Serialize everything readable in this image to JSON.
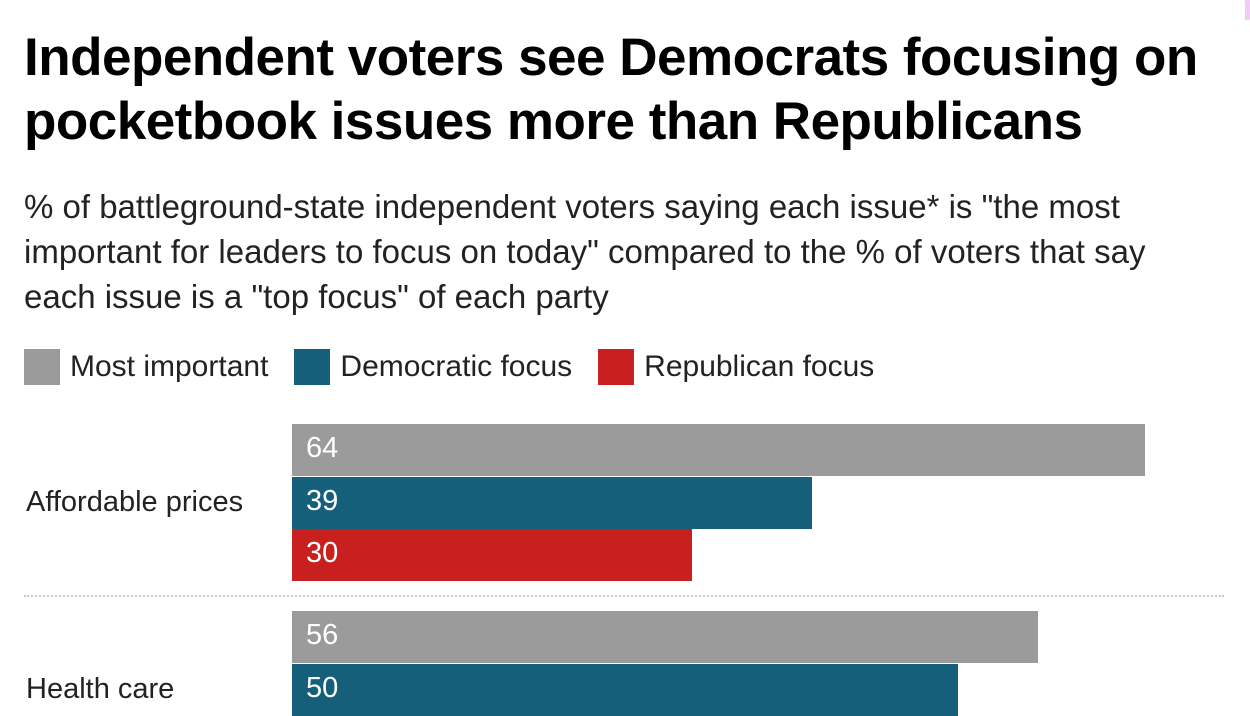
{
  "colors": {
    "most_important": "#9b9b9b",
    "democratic": "#155f7a",
    "republican": "#c81f1f"
  },
  "chart_data": {
    "type": "bar",
    "orientation": "horizontal",
    "title": "Independent voters see Democrats focusing on pocketbook issues more than Republicans",
    "subtitle": "% of battleground-state independent voters saying each issue* is \"the most important for leaders to focus on today\" compared to the % of voters that say each issue is a \"top focus\" of each party",
    "legend": [
      "Most important",
      "Democratic focus",
      "Republican focus"
    ],
    "legend_placement": "top-left",
    "categories": [
      "Affordable prices",
      "Health care"
    ],
    "series": [
      {
        "name": "Most important",
        "values": [
          64,
          56
        ]
      },
      {
        "name": "Democratic focus",
        "values": [
          39,
          50
        ]
      },
      {
        "name": "Republican focus",
        "values": [
          30,
          null
        ]
      }
    ],
    "xlim": [
      0,
      64
    ],
    "grid": false
  }
}
